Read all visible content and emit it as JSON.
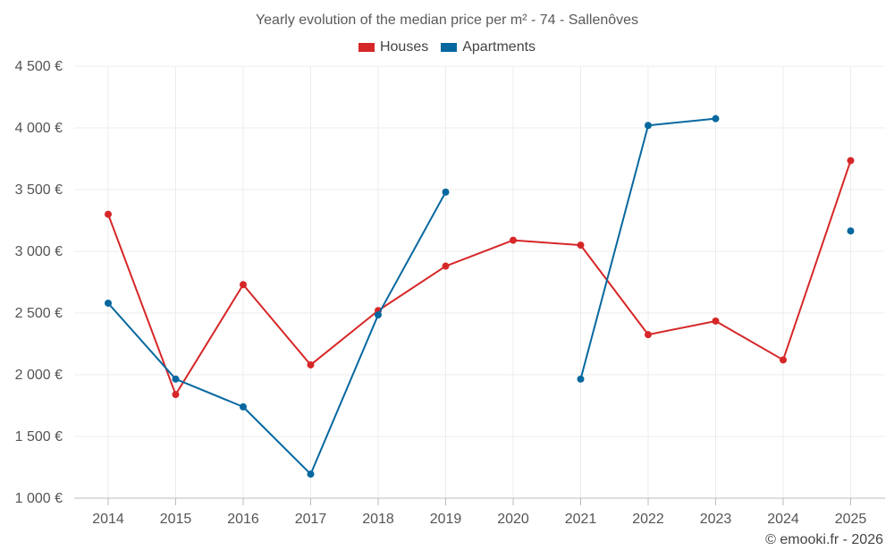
{
  "chart_data": {
    "type": "line",
    "title": "Yearly evolution of the median price per m² - 74 - Sallenôves",
    "xlabel": "",
    "ylabel": "",
    "x": [
      "2014",
      "2015",
      "2016",
      "2017",
      "2018",
      "2019",
      "2020",
      "2021",
      "2022",
      "2023",
      "2024",
      "2025"
    ],
    "ylim": [
      1000,
      4500
    ],
    "y_ticks": [
      1000,
      1500,
      2000,
      2500,
      3000,
      3500,
      4000,
      4500
    ],
    "y_tick_labels": [
      "1 000 €",
      "1 500 €",
      "2 000 €",
      "2 500 €",
      "3 000 €",
      "3 500 €",
      "4 000 €",
      "4 500 €"
    ],
    "grid": true,
    "legend_position": "top-center",
    "series": [
      {
        "name": "Houses",
        "color": "#d62728",
        "values": [
          3300,
          1840,
          2730,
          2080,
          2520,
          2880,
          3090,
          3050,
          2325,
          2435,
          2120,
          3735
        ]
      },
      {
        "name": "Apartments",
        "color": "#07689f",
        "values": [
          2580,
          1965,
          1740,
          1195,
          2485,
          3480,
          null,
          1965,
          4020,
          4075,
          null,
          3165
        ]
      }
    ]
  },
  "footer": {
    "credit": "© emooki.fr - 2026"
  }
}
